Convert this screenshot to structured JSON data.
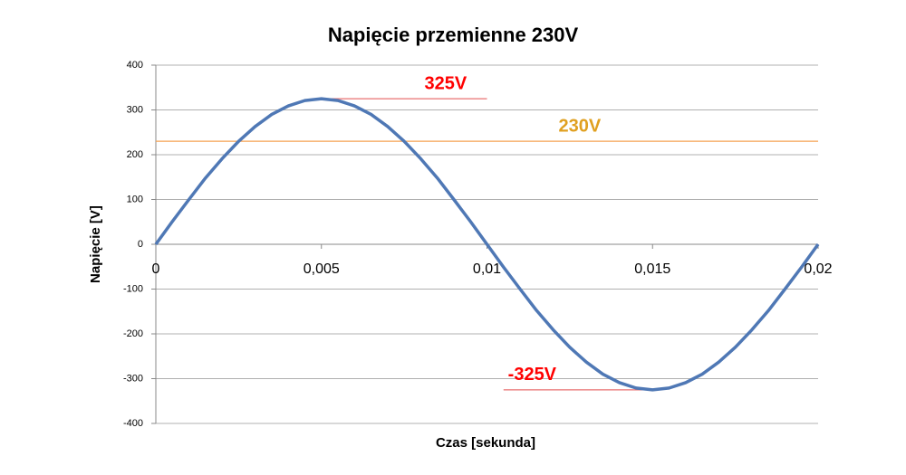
{
  "chart_data": {
    "type": "line",
    "title": "Napięcie przemienne 230V",
    "x_label": "Czas [sekunda]",
    "y_label": "Napięcie [V]",
    "x": [
      0,
      0.0005,
      0.001,
      0.0015,
      0.002,
      0.0025,
      0.003,
      0.0035,
      0.004,
      0.0045,
      0.005,
      0.0055,
      0.006,
      0.0065,
      0.007,
      0.0075,
      0.008,
      0.0085,
      0.009,
      0.0095,
      0.01,
      0.0105,
      0.011,
      0.0115,
      0.012,
      0.0125,
      0.013,
      0.0135,
      0.014,
      0.0145,
      0.015,
      0.0155,
      0.016,
      0.0165,
      0.017,
      0.0175,
      0.018,
      0.0185,
      0.019,
      0.0195,
      0.02
    ],
    "series": [
      {
        "color": "#4f78b5",
        "values": [
          0,
          51,
          100,
          148,
          191,
          230,
          263,
          290,
          309,
          321,
          325,
          321,
          309,
          290,
          263,
          230,
          191,
          148,
          100,
          51,
          0,
          -51,
          -100,
          -148,
          -191,
          -230,
          -263,
          -290,
          -309,
          -321,
          -325,
          -321,
          -309,
          -290,
          -263,
          -230,
          -191,
          -148,
          -100,
          -51,
          0
        ]
      }
    ],
    "xlim": [
      0,
      0.02
    ],
    "xticks": [
      0,
      {
        "value": 0.005,
        "label": "0,005"
      },
      {
        "value": 0.01,
        "label": "0,01"
      },
      {
        "value": 0.015,
        "label": "0,015"
      },
      {
        "value": 0.02,
        "label": "0,02"
      }
    ],
    "ylim": [
      -400,
      400
    ],
    "yticks": [
      -400,
      -300,
      -200,
      -100,
      0,
      100,
      200,
      300,
      400
    ],
    "grid": true,
    "annotations": [
      {
        "text": "325V",
        "value": 325,
        "xrange": [
          0.005,
          0.01
        ],
        "color": "#ff0000",
        "line_color": "#e87070"
      },
      {
        "text": "230V",
        "value": 230,
        "xrange": [
          0,
          0.02
        ],
        "color": "#e0a020",
        "line_color": "#f5a050"
      },
      {
        "text": "-325V",
        "value": -325,
        "xrange": [
          0.0105,
          0.0153
        ],
        "color": "#ff0000",
        "line_color": "#e87070"
      }
    ]
  }
}
